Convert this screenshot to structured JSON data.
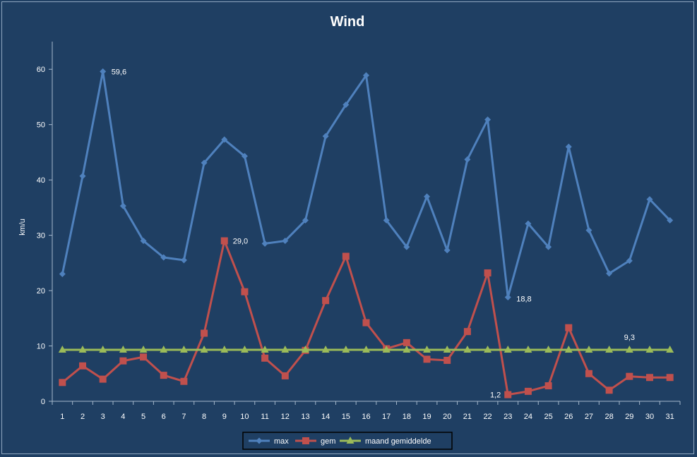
{
  "chart_data": {
    "type": "line",
    "title": "Wind",
    "xlabel": "",
    "ylabel": "km/u",
    "ylim": [
      0,
      65
    ],
    "yticks": [
      0,
      10,
      20,
      30,
      40,
      50,
      60
    ],
    "x": [
      1,
      2,
      3,
      4,
      5,
      6,
      7,
      8,
      9,
      10,
      11,
      12,
      13,
      14,
      15,
      16,
      17,
      18,
      19,
      20,
      21,
      22,
      23,
      24,
      25,
      26,
      27,
      28,
      29,
      30,
      31
    ],
    "grid": false,
    "legend_position": "bottom",
    "series": [
      {
        "name": "max",
        "color": "#4f81bd",
        "marker": "diamond",
        "values": [
          23.0,
          40.7,
          59.6,
          35.3,
          29.0,
          26.0,
          25.5,
          43.1,
          47.3,
          44.3,
          28.5,
          29.0,
          32.7,
          47.9,
          53.6,
          58.9,
          32.7,
          27.9,
          37.0,
          27.3,
          43.7,
          50.9,
          18.8,
          32.1,
          27.9,
          46.0,
          30.9,
          23.1,
          25.4,
          36.5,
          32.7
        ],
        "labels": [
          {
            "x": 3,
            "text": "59,6"
          },
          {
            "x": 23,
            "text": "18,8"
          }
        ]
      },
      {
        "name": "gem",
        "color": "#c0504d",
        "marker": "square",
        "values": [
          3.4,
          6.4,
          4.0,
          7.3,
          8.0,
          4.7,
          3.6,
          12.3,
          29.0,
          19.8,
          7.8,
          4.6,
          9.2,
          18.2,
          26.2,
          14.2,
          9.5,
          10.6,
          7.6,
          7.4,
          12.6,
          23.2,
          1.2,
          1.8,
          2.8,
          13.3,
          5.0,
          2.0,
          4.5,
          4.3,
          4.3
        ],
        "labels": [
          {
            "x": 9,
            "text": "29,0"
          },
          {
            "x": 23,
            "text": "1,2"
          }
        ]
      },
      {
        "name": "maand gemiddelde",
        "color": "#9bbb59",
        "marker": "triangle",
        "values": [
          9.3,
          9.3,
          9.3,
          9.3,
          9.3,
          9.3,
          9.3,
          9.3,
          9.3,
          9.3,
          9.3,
          9.3,
          9.3,
          9.3,
          9.3,
          9.3,
          9.3,
          9.3,
          9.3,
          9.3,
          9.3,
          9.3,
          9.3,
          9.3,
          9.3,
          9.3,
          9.3,
          9.3,
          9.3,
          9.3,
          9.3
        ],
        "labels": [
          {
            "x": 29,
            "text": "9,3"
          }
        ]
      }
    ]
  }
}
